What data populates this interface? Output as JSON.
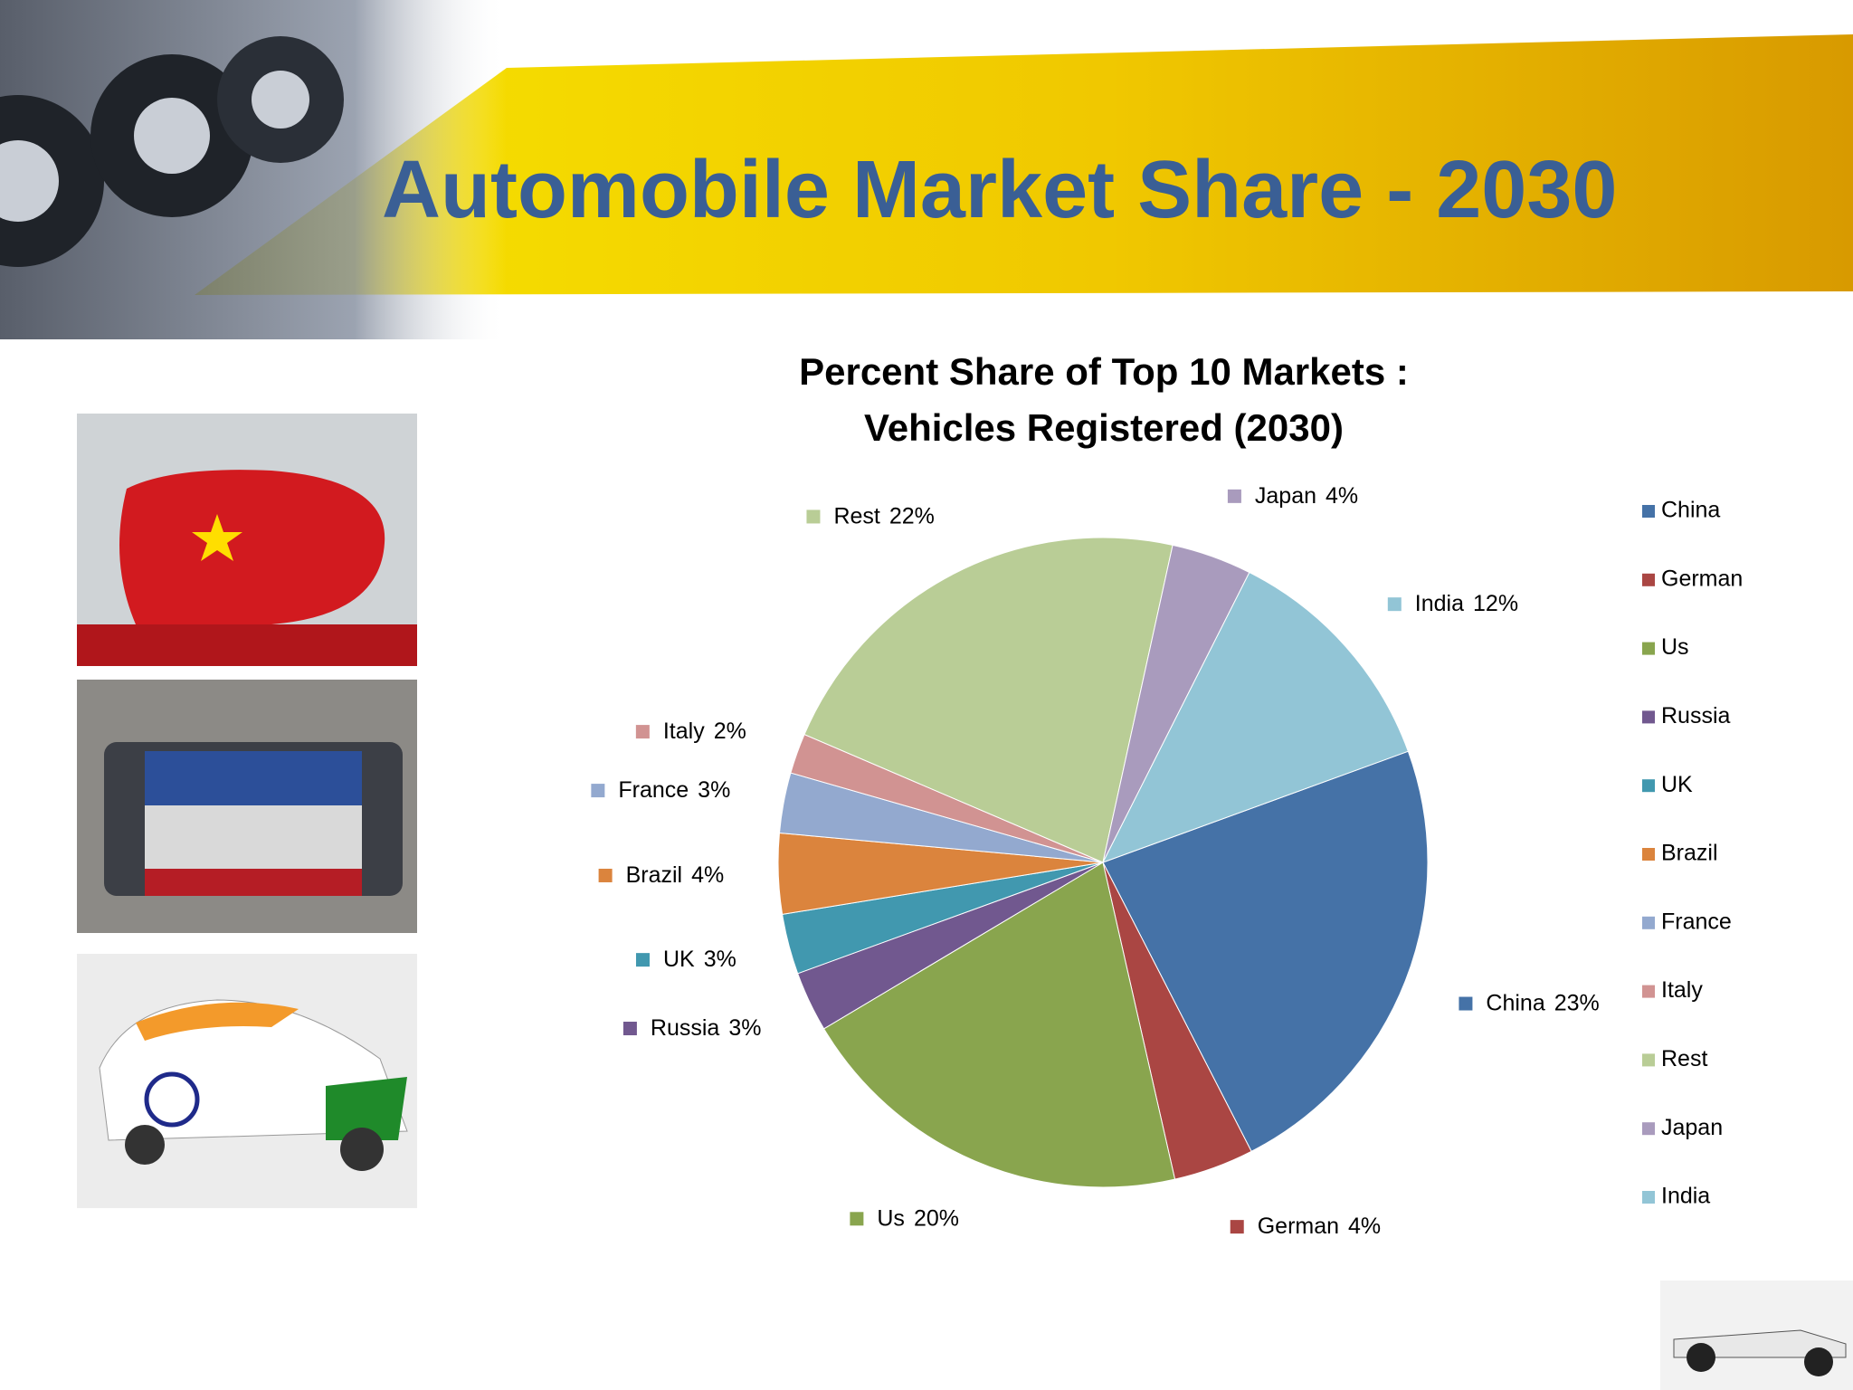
{
  "header": {
    "title": "Automobile Market Share - 2030"
  },
  "chart_data": {
    "type": "pie",
    "title": "Percent Share of Top 10 Markets : Vehicles Registered (2030)",
    "categories": [
      "China",
      "German",
      "Us",
      "Russia",
      "UK",
      "Brazil",
      "France",
      "Italy",
      "Rest",
      "Japan",
      "India"
    ],
    "values": [
      23,
      4,
      20,
      3,
      3,
      4,
      3,
      2,
      22,
      4,
      12
    ],
    "value_labels": [
      "23%",
      "4%",
      "20%",
      "3%",
      "3%",
      "4%",
      "3%",
      "2%",
      "22%",
      "4%",
      "12%"
    ],
    "colors": [
      "#4572a7",
      "#aa4643",
      "#89a54e",
      "#71588f",
      "#4198af",
      "#db843d",
      "#93a9cf",
      "#d19392",
      "#b9cd96",
      "#a99bbd",
      "#92c5d6"
    ],
    "legend": "right"
  }
}
